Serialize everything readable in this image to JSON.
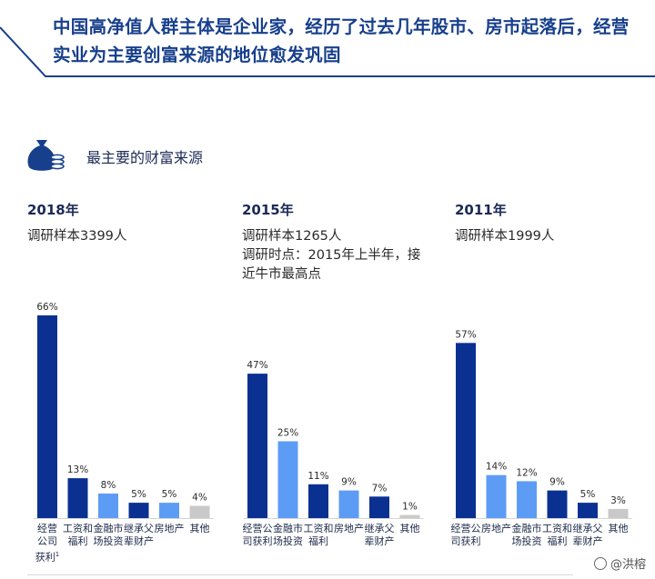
{
  "headline": "中国高净值人群主体是企业家，经历了过去几年股市、房市起落后，经营实业为主要创富来源的地位愈发巩固",
  "section_title": "最主要的财富来源",
  "section_icon": "money-bag-coins-icon",
  "watermark": "@洪榕",
  "colors": {
    "dark_blue": "#0a3191",
    "light_blue": "#5d9cf5",
    "gray": "#c9c9c9",
    "title_blue": "#173f8c"
  },
  "panels": [
    {
      "year": "2018年",
      "notes": [
        "调研样本3399人"
      ]
    },
    {
      "year": "2015年",
      "notes": [
        "调研样本1265人",
        "调研时点：2015年上半年，接",
        "近牛市最高点"
      ]
    },
    {
      "year": "2011年",
      "notes": [
        "调研样本1999人"
      ]
    }
  ],
  "chart_data": [
    {
      "type": "bar",
      "title": "2018年",
      "categories": [
        "经营公司获利",
        "工资和福利",
        "金融市场投资",
        "继承父辈财产",
        "房地产",
        "其他"
      ],
      "values": [
        66,
        13,
        8,
        5,
        5,
        4
      ],
      "value_labels": [
        "66%",
        "13%",
        "8%",
        "5%",
        "5%",
        "4%"
      ],
      "colors": [
        "#0a3191",
        "#0a3191",
        "#5d9cf5",
        "#0a3191",
        "#5d9cf5",
        "#c9c9c9"
      ],
      "footnote_mark": "1",
      "ylim": [
        0,
        70
      ]
    },
    {
      "type": "bar",
      "title": "2015年",
      "categories": [
        "经营公司获利",
        "金融市场投资",
        "工资和福利",
        "房地产",
        "继承父辈财产",
        "其他"
      ],
      "values": [
        47,
        25,
        11,
        9,
        7,
        1
      ],
      "value_labels": [
        "47%",
        "25%",
        "11%",
        "9%",
        "7%",
        "1%"
      ],
      "colors": [
        "#0a3191",
        "#5d9cf5",
        "#0a3191",
        "#5d9cf5",
        "#0a3191",
        "#c9c9c9"
      ],
      "ylim": [
        0,
        70
      ]
    },
    {
      "type": "bar",
      "title": "2011年",
      "categories": [
        "经营公司获利",
        "房地产",
        "金融市场投资",
        "工资和福利",
        "继承父辈财产",
        "其他"
      ],
      "values": [
        57,
        14,
        12,
        9,
        5,
        3
      ],
      "value_labels": [
        "57%",
        "14%",
        "12%",
        "9%",
        "5%",
        "3%"
      ],
      "colors": [
        "#0a3191",
        "#5d9cf5",
        "#5d9cf5",
        "#0a3191",
        "#0a3191",
        "#c9c9c9"
      ],
      "ylim": [
        0,
        70
      ]
    }
  ]
}
